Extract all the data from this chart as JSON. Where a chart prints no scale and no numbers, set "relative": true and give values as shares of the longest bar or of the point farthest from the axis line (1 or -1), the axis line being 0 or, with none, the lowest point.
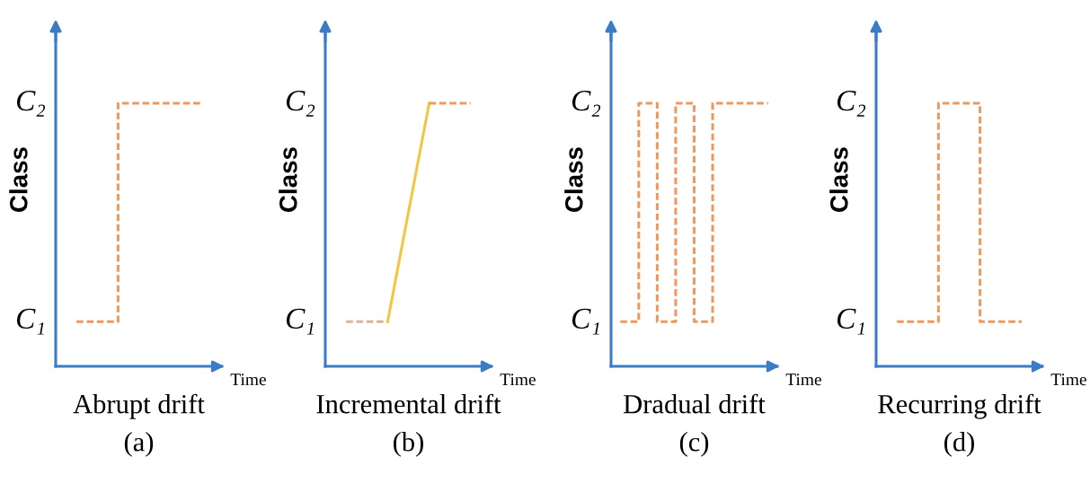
{
  "chart_data": [
    {
      "type": "step",
      "title": "Abrupt drift",
      "xlabel": "Time",
      "ylabel": "Class",
      "relative": true,
      "categories": [
        null,
        null,
        null,
        null
      ],
      "annotations": [
        "C₁",
        "C₂",
        "(a)"
      ],
      "series": [
        {
          "color": "#ec9a62",
          "line_style": "dashed",
          "values": [
            0.17,
            1,
            1,
            1
          ]
        }
      ]
    },
    {
      "type": "line",
      "title": "Incremental drift",
      "xlabel": "Time",
      "ylabel": "Class",
      "relative": true,
      "categories": [
        null,
        null,
        null,
        null
      ],
      "annotations": [
        "C₁",
        "C₂",
        "(b)"
      ],
      "series": [
        {
          "color": "#d9b49a",
          "line_style": "dashed",
          "values": [
            0.17,
            0.17,
            null,
            null
          ]
        },
        {
          "color": "#f2c640",
          "line_style": "solid",
          "values": [
            null,
            0.17,
            1,
            null
          ]
        },
        {
          "color": "#ec9a62",
          "line_style": "dashed",
          "values": [
            null,
            null,
            1,
            1
          ]
        }
      ]
    },
    {
      "type": "step",
      "title": "Dradual drift",
      "xlabel": "Time",
      "ylabel": "Class",
      "relative": true,
      "categories": [
        null,
        null,
        null,
        null,
        null,
        null,
        null,
        null,
        null
      ],
      "annotations": [
        "C₁",
        "C₂",
        "(c)"
      ],
      "series": [
        {
          "color": "#ec9a62",
          "line_style": "dashed",
          "values": [
            0.17,
            1,
            0.17,
            1,
            0.17,
            1,
            1,
            1,
            1
          ]
        }
      ]
    },
    {
      "type": "step",
      "title": "Recurring drift",
      "xlabel": "Time",
      "ylabel": "Class",
      "relative": true,
      "categories": [
        null,
        null,
        null,
        null
      ],
      "annotations": [
        "C₁",
        "C₂",
        "(d)"
      ],
      "series": [
        {
          "color": "#ec9a62",
          "line_style": "dashed",
          "values": [
            0.17,
            1,
            0.17,
            0.17
          ]
        }
      ]
    }
  ]
}
